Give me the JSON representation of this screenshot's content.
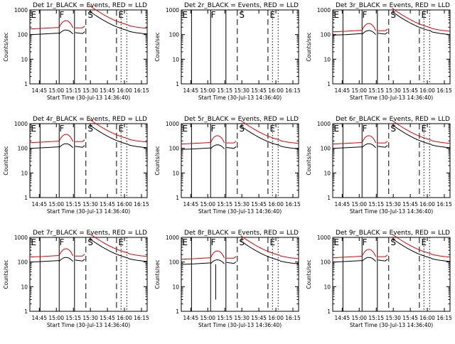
{
  "chart_data": [
    {
      "type": "line",
      "title": "Det 1r_BLACK = Events, RED = LLD",
      "xlabel": "Start Time (30-Jul-13 14:36:40)",
      "ylabel": "Counts/sec",
      "yscale": "log",
      "ylim": [
        1,
        1000
      ],
      "yticks": [
        "1",
        "10",
        "100",
        "1000"
      ],
      "xticks": [
        "14:45",
        "15:00",
        "15:15",
        "15:30",
        "15:45",
        "16:00",
        "16:15"
      ],
      "annotations": [
        "E",
        "F",
        "S",
        "E"
      ],
      "has_data": true,
      "black_level": 100,
      "red_level": 170,
      "black_gap": [],
      "red_gap": [],
      "spike": false
    },
    {
      "type": "line",
      "title": "Det 2r_BLACK = Events, RED = LLD",
      "xlabel": "Start Time (30-Jul-13 14:36:40)",
      "ylabel": "Counts/sec",
      "yscale": "log",
      "ylim": [
        1,
        1000
      ],
      "yticks": [
        "1",
        "10",
        "100",
        "1000"
      ],
      "xticks": [
        "14:45",
        "15:00",
        "15:15",
        "15:30",
        "15:45",
        "16:00",
        "16:15"
      ],
      "annotations": [
        "E",
        "F",
        "S",
        "E"
      ],
      "has_data": false,
      "black_level": 0,
      "red_level": 0,
      "black_gap": [],
      "red_gap": [],
      "spike": false
    },
    {
      "type": "line",
      "title": "Det 3r_BLACK = Events, RED = LLD",
      "xlabel": "Start Time (30-Jul-13 14:36:40)",
      "ylabel": "Counts/sec",
      "yscale": "log",
      "ylim": [
        1,
        1000
      ],
      "yticks": [
        "1",
        "10",
        "100",
        "1000"
      ],
      "xticks": [
        "14:45",
        "15:00",
        "15:15",
        "15:30",
        "15:45",
        "16:00",
        "16:15"
      ],
      "annotations": [
        "E",
        "F",
        "S",
        "E"
      ],
      "has_data": true,
      "black_level": 95,
      "red_level": 130,
      "black_gap": [
        "15:00",
        "15:15"
      ],
      "red_gap": [],
      "spike": false
    },
    {
      "type": "line",
      "title": "Det 4r_BLACK = Events, RED = LLD",
      "xlabel": "Start Time (30-Jul-13 14:36:40)",
      "ylabel": "Counts/sec",
      "yscale": "log",
      "ylim": [
        1,
        1000
      ],
      "yticks": [
        "1",
        "10",
        "100",
        "1000"
      ],
      "xticks": [
        "14:45",
        "15:00",
        "15:15",
        "15:30",
        "15:45",
        "16:00",
        "16:15"
      ],
      "annotations": [
        "E",
        "F",
        "S",
        "E"
      ],
      "has_data": true,
      "black_level": 100,
      "red_level": 170,
      "black_gap": [],
      "red_gap": [],
      "spike": false
    },
    {
      "type": "line",
      "title": "Det 5r_BLACK = Events, RED = LLD",
      "xlabel": "Start Time (30-Jul-13 14:36:40)",
      "ylabel": "Counts/sec",
      "yscale": "log",
      "ylim": [
        1,
        1000
      ],
      "yticks": [
        "1",
        "10",
        "100",
        "1000"
      ],
      "xticks": [
        "14:45",
        "15:00",
        "15:15",
        "15:30",
        "15:45",
        "16:00",
        "16:15"
      ],
      "annotations": [
        "E",
        "F",
        "S",
        "E"
      ],
      "has_data": true,
      "black_level": 90,
      "red_level": 150,
      "black_gap": [],
      "red_gap": [],
      "spike": false
    },
    {
      "type": "line",
      "title": "Det 6r_BLACK = Events, RED = LLD",
      "xlabel": "Start Time (30-Jul-13 14:36:40)",
      "ylabel": "Counts/sec",
      "yscale": "log",
      "ylim": [
        1,
        1000
      ],
      "yticks": [
        "1",
        "10",
        "100",
        "1000"
      ],
      "xticks": [
        "14:45",
        "15:00",
        "15:15",
        "15:30",
        "15:45",
        "16:00",
        "16:15"
      ],
      "annotations": [
        "E",
        "F",
        "S",
        "E"
      ],
      "has_data": true,
      "black_level": 100,
      "red_level": 150,
      "black_gap": [],
      "red_gap": [],
      "spike": false
    },
    {
      "type": "line",
      "title": "Det 7r_BLACK = Events, RED = LLD",
      "xlabel": "Start Time (30-Jul-13 14:36:40)",
      "ylabel": "Counts/sec",
      "yscale": "log",
      "ylim": [
        1,
        1000
      ],
      "yticks": [
        "1",
        "10",
        "100",
        "1000"
      ],
      "xticks": [
        "14:45",
        "15:00",
        "15:15",
        "15:30",
        "15:45",
        "16:00",
        "16:15"
      ],
      "annotations": [
        "E",
        "F",
        "S",
        "E"
      ],
      "has_data": true,
      "black_level": 100,
      "red_level": 160,
      "black_gap": [],
      "red_gap": [],
      "spike": false
    },
    {
      "type": "line",
      "title": "Det 8r_BLACK = Events, RED = LLD",
      "xlabel": "Start Time (30-Jul-13 14:36:40)",
      "ylabel": "Counts/sec",
      "yscale": "log",
      "ylim": [
        1,
        1000
      ],
      "yticks": [
        "1",
        "10",
        "100",
        "1000"
      ],
      "xticks": [
        "14:45",
        "15:00",
        "15:15",
        "15:30",
        "15:45",
        "16:00",
        "16:15"
      ],
      "annotations": [
        "E",
        "F",
        "S",
        "E"
      ],
      "has_data": true,
      "black_level": 80,
      "red_level": 130,
      "black_gap": [],
      "red_gap": [],
      "spike": true
    },
    {
      "type": "line",
      "title": "Det 9r_BLACK = Events, RED = LLD",
      "xlabel": "Start Time (30-Jul-13 14:36:40)",
      "ylabel": "Counts/sec",
      "yscale": "log",
      "ylim": [
        1,
        1000
      ],
      "yticks": [
        "1",
        "10",
        "100",
        "1000"
      ],
      "xticks": [
        "14:45",
        "15:00",
        "15:15",
        "15:30",
        "15:45",
        "16:00",
        "16:15"
      ],
      "annotations": [
        "E",
        "F",
        "S",
        "E"
      ],
      "has_data": true,
      "black_level": 100,
      "red_level": 150,
      "black_gap": [],
      "red_gap": [],
      "spike": false
    }
  ],
  "colors": {
    "events": "#000000",
    "lld": "#e00000"
  }
}
